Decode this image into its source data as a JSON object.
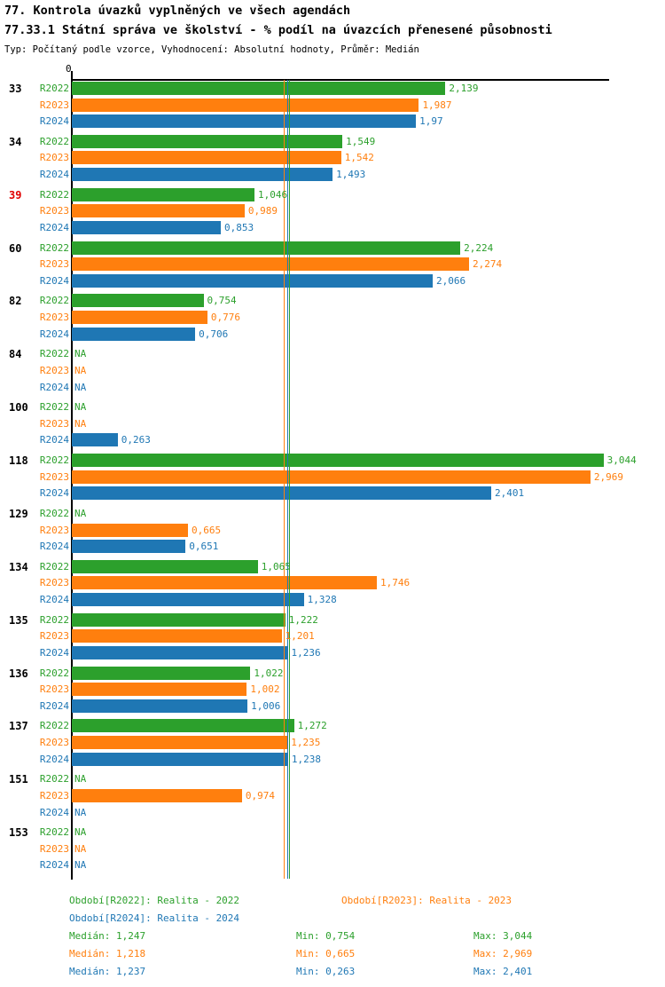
{
  "header": {
    "title1": "77. Kontrola úvazků vyplněných ve všech agendách",
    "title2": "77.33.1 Státní správa ve školství - % podíl na úvazcích přenesené působnosti",
    "subtitle": "Typ: Počítaný podle vzorce, Vyhodnocení: Absolutní hodnoty, Průměr: Medián"
  },
  "colors": {
    "series": [
      "#2CA02C",
      "#FF7F0E",
      "#1F77B4"
    ],
    "group_label": "#000000",
    "alert_group_label": "#E00000",
    "axis": "#000000"
  },
  "chart_data": {
    "type": "bar",
    "orientation": "horizontal",
    "x_axis": {
      "min": 0,
      "max": 3.07,
      "zero_tick_label": "0",
      "grid": false
    },
    "series_labels": [
      "R2022",
      "R2023",
      "R2024"
    ],
    "median_lines": [
      {
        "series": "R2023",
        "value": 1.218
      },
      {
        "series": "R2024",
        "value": 1.237
      },
      {
        "series": "R2022",
        "value": 1.247
      }
    ],
    "groups": [
      {
        "id": "33",
        "alert": false,
        "values": [
          2.139,
          1.987,
          1.97
        ],
        "value_labels": [
          "2,139",
          "1,987",
          "1,97"
        ]
      },
      {
        "id": "34",
        "alert": false,
        "values": [
          1.549,
          1.542,
          1.493
        ],
        "value_labels": [
          "1,549",
          "1,542",
          "1,493"
        ]
      },
      {
        "id": "39",
        "alert": true,
        "values": [
          1.046,
          0.989,
          0.853
        ],
        "value_labels": [
          "1,046",
          "0,989",
          "0,853"
        ]
      },
      {
        "id": "60",
        "alert": false,
        "values": [
          2.224,
          2.274,
          2.066
        ],
        "value_labels": [
          "2,224",
          "2,274",
          "2,066"
        ]
      },
      {
        "id": "82",
        "alert": false,
        "values": [
          0.754,
          0.776,
          0.706
        ],
        "value_labels": [
          "0,754",
          "0,776",
          "0,706"
        ]
      },
      {
        "id": "84",
        "alert": false,
        "values": [
          null,
          null,
          null
        ],
        "value_labels": [
          "NA",
          "NA",
          "NA"
        ]
      },
      {
        "id": "100",
        "alert": false,
        "values": [
          null,
          null,
          0.263
        ],
        "value_labels": [
          "NA",
          "NA",
          "0,263"
        ]
      },
      {
        "id": "118",
        "alert": false,
        "values": [
          3.044,
          2.969,
          2.401
        ],
        "value_labels": [
          "3,044",
          "2,969",
          "2,401"
        ]
      },
      {
        "id": "129",
        "alert": false,
        "values": [
          null,
          0.665,
          0.651
        ],
        "value_labels": [
          "NA",
          "0,665",
          "0,651"
        ]
      },
      {
        "id": "134",
        "alert": false,
        "values": [
          1.065,
          1.746,
          1.328
        ],
        "value_labels": [
          "1,065",
          "1,746",
          "1,328"
        ]
      },
      {
        "id": "135",
        "alert": false,
        "values": [
          1.222,
          1.201,
          1.236
        ],
        "value_labels": [
          "1,222",
          "1,201",
          "1,236"
        ]
      },
      {
        "id": "136",
        "alert": false,
        "values": [
          1.022,
          1.002,
          1.006
        ],
        "value_labels": [
          "1,022",
          "1,002",
          "1,006"
        ]
      },
      {
        "id": "137",
        "alert": false,
        "values": [
          1.272,
          1.235,
          1.238
        ],
        "value_labels": [
          "1,272",
          "1,235",
          "1,238"
        ]
      },
      {
        "id": "151",
        "alert": false,
        "values": [
          null,
          0.974,
          null
        ],
        "value_labels": [
          "NA",
          "0,974",
          "NA"
        ]
      },
      {
        "id": "153",
        "alert": false,
        "values": [
          null,
          null,
          null
        ],
        "value_labels": [
          "NA",
          "NA",
          "NA"
        ]
      }
    ]
  },
  "legend": {
    "r2022": "Období[R2022]: Realita - 2022",
    "r2023": "Období[R2023]: Realita - 2023",
    "r2024": "Období[R2024]: Realita - 2024"
  },
  "stats": [
    {
      "median": "Medián: 1,247",
      "min": "Min: 0,754",
      "max": "Max: 3,044"
    },
    {
      "median": "Medián: 1,218",
      "min": "Min: 0,665",
      "max": "Max: 2,969"
    },
    {
      "median": "Medián: 1,237",
      "min": "Min: 0,263",
      "max": "Max: 2,401"
    }
  ]
}
